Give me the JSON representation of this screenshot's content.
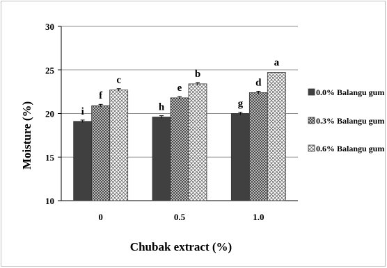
{
  "chart_data": {
    "type": "bar",
    "title": "",
    "xlabel": "Chubak extract (%)",
    "ylabel": "Moisture (%)",
    "ylim": [
      10,
      30
    ],
    "yticks": [
      "10",
      "15",
      "20",
      "25",
      "30"
    ],
    "categories": [
      "0",
      "0.5",
      "1.0"
    ],
    "grid": true,
    "legend_position": "right",
    "series": [
      {
        "name": "0.0% Balangu gum",
        "values": [
          19.1,
          19.6,
          20.0
        ],
        "errors": [
          0.15,
          0.15,
          0.15
        ],
        "letters": [
          "i",
          "h",
          "g"
        ],
        "color": "#404040",
        "pattern": "solid"
      },
      {
        "name": "0.3% Balangu gum",
        "values": [
          20.9,
          21.8,
          22.4
        ],
        "errors": [
          0.15,
          0.15,
          0.15
        ],
        "letters": [
          "f",
          "e",
          "d"
        ],
        "color": "#606060",
        "pattern": "crosshatch"
      },
      {
        "name": "0.6% Balangu gum",
        "values": [
          22.7,
          23.4,
          24.7
        ],
        "errors": [
          0.15,
          0.15,
          0.0
        ],
        "letters": [
          "c",
          "b",
          "a"
        ],
        "color": "#808080",
        "pattern": "dense-crosshatch"
      }
    ]
  }
}
